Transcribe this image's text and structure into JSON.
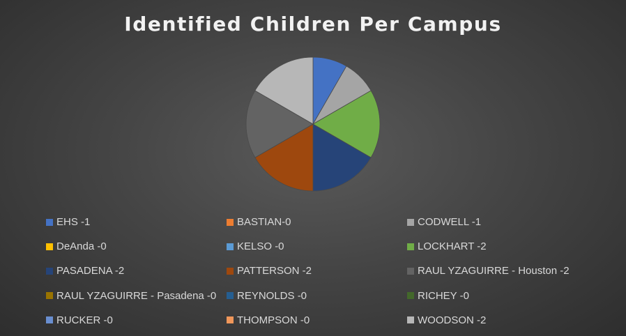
{
  "chart_data": {
    "type": "pie",
    "title": "Identified Children Per Campus",
    "slices": [
      {
        "label": "EHS -1",
        "value": 1,
        "color": "#4472c4"
      },
      {
        "label": "BASTIAN-0",
        "value": 0,
        "color": "#ed7d31"
      },
      {
        "label": "CODWELL -1",
        "value": 1,
        "color": "#a5a5a5"
      },
      {
        "label": "DeAnda -0",
        "value": 0,
        "color": "#ffc000"
      },
      {
        "label": "KELSO -0",
        "value": 0,
        "color": "#5b9bd5"
      },
      {
        "label": "LOCKHART -2",
        "value": 2,
        "color": "#70ad47"
      },
      {
        "label": "PASADENA -2",
        "value": 2,
        "color": "#264478"
      },
      {
        "label": "PATTERSON -2",
        "value": 2,
        "color": "#9e480e"
      },
      {
        "label": "RAUL YZAGUIRRE - Houston -2",
        "value": 2,
        "color": "#636363"
      },
      {
        "label": "RAUL YZAGUIRRE - Pasadena -0",
        "value": 0,
        "color": "#997300"
      },
      {
        "label": "REYNOLDS -0",
        "value": 0,
        "color": "#255e91"
      },
      {
        "label": "RICHEY -0",
        "value": 0,
        "color": "#43682b"
      },
      {
        "label": "RUCKER -0",
        "value": 0,
        "color": "#698ed0"
      },
      {
        "label": "THOMPSON  -0",
        "value": 0,
        "color": "#f1975a"
      },
      {
        "label": "WOODSON -2",
        "value": 2,
        "color": "#b7b7b7"
      }
    ],
    "legend_position": "bottom"
  }
}
